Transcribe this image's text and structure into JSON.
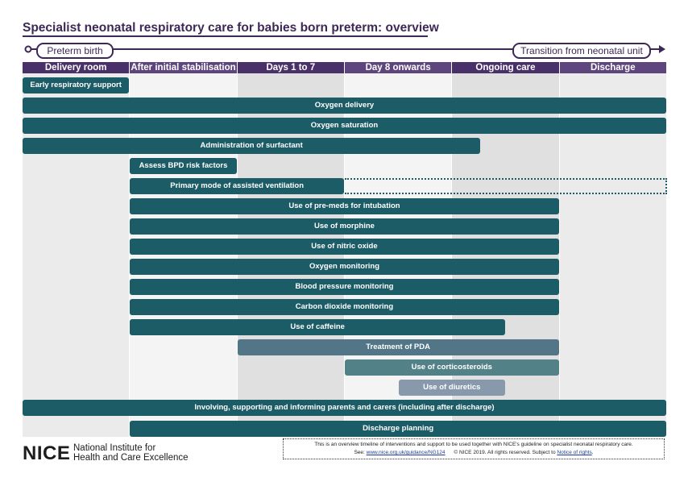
{
  "title": "Specialist neonatal respiratory care for babies born preterm: overview",
  "timeline": {
    "start": "Preterm birth",
    "end": "Transition from neonatal unit"
  },
  "phases": [
    {
      "label": "Delivery room",
      "color": "#4a3068"
    },
    {
      "label": "After initial stabilisation",
      "color": "#5e457d"
    },
    {
      "label": "Days 1 to 7",
      "color": "#4a3068"
    },
    {
      "label": "Day 8 onwards",
      "color": "#5e457d"
    },
    {
      "label": "Ongoing care",
      "color": "#4a3068"
    },
    {
      "label": "Discharge",
      "color": "#5e457d"
    }
  ],
  "column_shades": [
    "#ebebeb",
    "#f4f4f4",
    "#e0e0e0",
    "#f4f4f4",
    "#e0e0e0",
    "#ebebeb"
  ],
  "interventions": [
    {
      "label": "Early respiratory support",
      "start": 0,
      "end": 1,
      "color": "#1b5c67"
    },
    {
      "label": "Oxygen delivery",
      "start": 0,
      "end": 6,
      "color": "#1b5c67"
    },
    {
      "label": "Oxygen saturation",
      "start": 0,
      "end": 6,
      "color": "#1b5c67"
    },
    {
      "label": "Administration of surfactant",
      "start": 0,
      "end": 4.27,
      "color": "#1b5c67"
    },
    {
      "label": "Assess BPD risk factors",
      "start": 1,
      "end": 2,
      "color": "#1b5c67"
    },
    {
      "label": "Primary mode of assisted ventilation",
      "start": 1,
      "end": 3,
      "continues_to": 6,
      "color": "#1b5c67"
    },
    {
      "label": "Use of pre-meds for intubation",
      "start": 1,
      "end": 5,
      "color": "#1b5c67"
    },
    {
      "label": "Use of morphine",
      "start": 1,
      "end": 5,
      "color": "#1b5c67"
    },
    {
      "label": "Use of nitric oxide",
      "start": 1,
      "end": 5,
      "color": "#1b5c67"
    },
    {
      "label": "Oxygen monitoring",
      "start": 1,
      "end": 5,
      "color": "#1b5c67"
    },
    {
      "label": "Blood pressure monitoring",
      "start": 1,
      "end": 5,
      "color": "#1b5c67"
    },
    {
      "label": "Carbon dioxide monitoring",
      "start": 1,
      "end": 5,
      "color": "#1b5c67"
    },
    {
      "label": "Use of caffeine",
      "start": 1,
      "end": 4.5,
      "color": "#1b5c67"
    },
    {
      "label": "Treatment of PDA",
      "start": 2,
      "end": 5,
      "color": "#527687"
    },
    {
      "label": "Use of corticosteroids",
      "start": 3,
      "end": 5,
      "color": "#528287"
    },
    {
      "label": "Use of diuretics",
      "start": 3.5,
      "end": 4.5,
      "color": "#8799ab"
    },
    {
      "label": "Involving, supporting and informing parents and carers (including after discharge)",
      "start": 0,
      "end": 6,
      "color": "#1b5c67"
    },
    {
      "label": "Discharge planning",
      "start": 1,
      "end": 6,
      "color": "#1b5c67"
    }
  ],
  "footer": {
    "logo": "NICE",
    "org_line1": "National Institute for",
    "org_line2": "Health and Care Excellence",
    "disclaimer_line1": "This is an overview timeline of interventions and support to be used together with NICE's guideline on specialist neonatal respiratory care.",
    "see_text": "See:",
    "guidance_link": "www.nice.org.uk/guidance/NG124",
    "copyright": "© NICE 2019. All rights reserved. Subject to",
    "rights_link": "Notice of rights"
  }
}
